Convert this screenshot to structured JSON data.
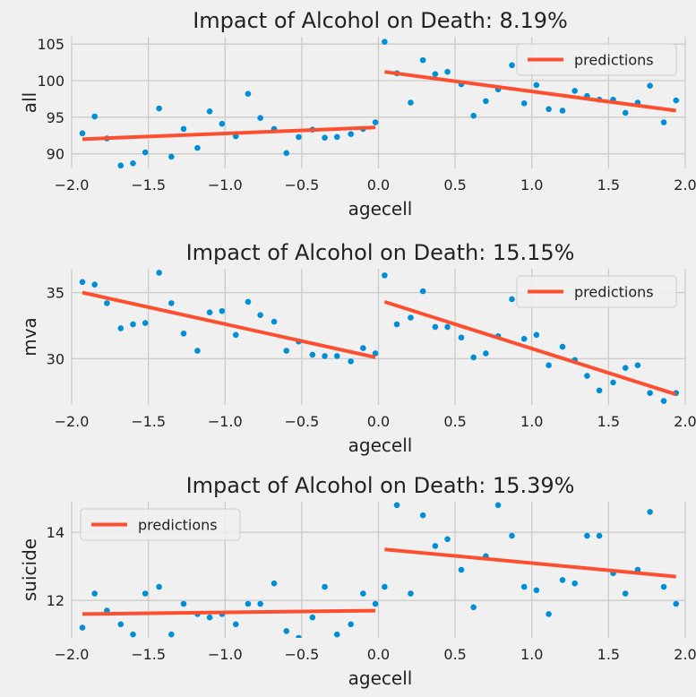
{
  "figure": {
    "background": "#f0f0f0",
    "point_color": "#008fd5",
    "line_color": "#fc4f30"
  },
  "chart_data": [
    {
      "type": "scatter",
      "title": "Impact of Alcohol on Death: 8.19%",
      "xlabel": "agecell",
      "ylabel": "all",
      "xlim": [
        -2.0,
        2.0
      ],
      "ylim": [
        88,
        106
      ],
      "xticks": [
        -2.0,
        -1.5,
        -1.0,
        -0.5,
        0.0,
        0.5,
        1.0,
        1.5,
        2.0
      ],
      "xtick_labels": [
        "−2.0",
        "−1.5",
        "−1.0",
        "−0.5",
        "0.0",
        "0.5",
        "1.0",
        "1.5",
        "2.0"
      ],
      "yticks": [
        90,
        95,
        100,
        105
      ],
      "ytick_labels": [
        "90",
        "95",
        "100",
        "105"
      ],
      "legend": {
        "label": "predictions",
        "placement": "top-right"
      },
      "series": [
        {
          "name": "observations",
          "x": [
            -1.93,
            -1.85,
            -1.77,
            -1.68,
            -1.6,
            -1.52,
            -1.43,
            -1.35,
            -1.27,
            -1.18,
            -1.1,
            -1.02,
            -0.93,
            -0.85,
            -0.77,
            -0.68,
            -0.6,
            -0.52,
            -0.43,
            -0.35,
            -0.27,
            -0.18,
            -0.1,
            -0.02,
            0.04,
            0.12,
            0.21,
            0.29,
            0.37,
            0.45,
            0.54,
            0.62,
            0.7,
            0.78,
            0.87,
            0.95,
            1.03,
            1.11,
            1.2,
            1.28,
            1.36,
            1.44,
            1.53,
            1.61,
            1.69,
            1.77,
            1.86,
            1.94
          ],
          "y": [
            92.8,
            95.1,
            92.1,
            88.4,
            88.7,
            90.2,
            96.2,
            89.6,
            93.4,
            90.8,
            95.8,
            94.1,
            92.4,
            98.2,
            94.9,
            93.4,
            90.1,
            92.3,
            93.3,
            92.2,
            92.3,
            92.7,
            93.4,
            94.3,
            105.3,
            101.0,
            97.0,
            102.8,
            100.9,
            101.2,
            99.5,
            95.2,
            97.2,
            98.8,
            102.1,
            96.9,
            99.4,
            96.1,
            95.9,
            98.6,
            97.9,
            97.4,
            97.4,
            95.6,
            97.0,
            99.3,
            94.3,
            97.3
          ]
        },
        {
          "name": "predictions",
          "segments": [
            {
              "x": [
                -1.93,
                -0.02
              ],
              "y": [
                92.0,
                93.6
              ]
            },
            {
              "x": [
                0.04,
                1.94
              ],
              "y": [
                101.2,
                95.9
              ]
            }
          ]
        }
      ]
    },
    {
      "type": "scatter",
      "title": "Impact of Alcohol on Death: 15.15%",
      "xlabel": "agecell",
      "ylabel": "mva",
      "xlim": [
        -2.0,
        2.0
      ],
      "ylim": [
        26.5,
        36.8
      ],
      "xticks": [
        -2.0,
        -1.5,
        -1.0,
        -0.5,
        0.0,
        0.5,
        1.0,
        1.5,
        2.0
      ],
      "xtick_labels": [
        "−2.0",
        "−1.5",
        "−1.0",
        "−0.5",
        "0.0",
        "0.5",
        "1.0",
        "1.5",
        "2.0"
      ],
      "yticks": [
        30,
        35
      ],
      "ytick_labels": [
        "30",
        "35"
      ],
      "legend": {
        "label": "predictions",
        "placement": "top-right"
      },
      "series": [
        {
          "name": "observations",
          "x": [
            -1.93,
            -1.85,
            -1.77,
            -1.68,
            -1.6,
            -1.52,
            -1.43,
            -1.35,
            -1.27,
            -1.18,
            -1.1,
            -1.02,
            -0.93,
            -0.85,
            -0.77,
            -0.68,
            -0.6,
            -0.52,
            -0.43,
            -0.35,
            -0.27,
            -0.18,
            -0.1,
            -0.02,
            0.04,
            0.12,
            0.21,
            0.29,
            0.37,
            0.45,
            0.54,
            0.62,
            0.7,
            0.78,
            0.87,
            0.95,
            1.03,
            1.11,
            1.2,
            1.28,
            1.36,
            1.44,
            1.53,
            1.61,
            1.69,
            1.77,
            1.86,
            1.94
          ],
          "y": [
            35.8,
            35.6,
            34.2,
            32.3,
            32.6,
            32.7,
            36.5,
            34.2,
            31.9,
            30.6,
            33.5,
            33.6,
            31.8,
            34.3,
            33.3,
            32.8,
            30.6,
            31.3,
            30.3,
            30.2,
            30.2,
            29.8,
            30.8,
            30.4,
            36.3,
            32.6,
            33.1,
            35.1,
            32.4,
            32.4,
            31.6,
            30.1,
            30.4,
            31.7,
            34.5,
            31.5,
            31.8,
            29.5,
            30.9,
            29.9,
            28.7,
            27.6,
            28.2,
            29.3,
            29.5,
            27.4,
            26.8,
            27.4
          ]
        },
        {
          "name": "predictions",
          "segments": [
            {
              "x": [
                -1.93,
                -0.02
              ],
              "y": [
                35.0,
                30.1
              ]
            },
            {
              "x": [
                0.04,
                1.94
              ],
              "y": [
                34.3,
                27.3
              ]
            }
          ]
        }
      ]
    },
    {
      "type": "scatter",
      "title": "Impact of Alcohol on Death: 15.39%",
      "xlabel": "agecell",
      "ylabel": "suicide",
      "xlim": [
        -2.0,
        2.0
      ],
      "ylim": [
        10.9,
        14.9
      ],
      "xticks": [
        -2.0,
        -1.5,
        -1.0,
        -0.5,
        0.0,
        0.5,
        1.0,
        1.5,
        2.0
      ],
      "xtick_labels": [
        "−2.0",
        "−1.5",
        "−1.0",
        "−0.5",
        "0.0",
        "0.5",
        "1.0",
        "1.5",
        "2.0"
      ],
      "yticks": [
        12,
        14
      ],
      "ytick_labels": [
        "12",
        "14"
      ],
      "legend": {
        "label": "predictions",
        "placement": "top-left"
      },
      "series": [
        {
          "name": "observations",
          "x": [
            -1.93,
            -1.85,
            -1.77,
            -1.68,
            -1.6,
            -1.52,
            -1.43,
            -1.35,
            -1.27,
            -1.18,
            -1.1,
            -1.02,
            -0.93,
            -0.85,
            -0.77,
            -0.68,
            -0.6,
            -0.52,
            -0.43,
            -0.35,
            -0.27,
            -0.18,
            -0.1,
            -0.02,
            0.04,
            0.12,
            0.21,
            0.29,
            0.37,
            0.45,
            0.54,
            0.62,
            0.7,
            0.78,
            0.87,
            0.95,
            1.03,
            1.11,
            1.2,
            1.28,
            1.36,
            1.44,
            1.53,
            1.61,
            1.69,
            1.77,
            1.86,
            1.94
          ],
          "y": [
            11.2,
            12.2,
            11.7,
            11.3,
            11.0,
            12.2,
            12.4,
            11.0,
            11.9,
            11.6,
            11.5,
            11.6,
            11.3,
            11.9,
            11.9,
            12.5,
            11.1,
            10.9,
            11.5,
            12.4,
            11.0,
            11.3,
            12.2,
            11.9,
            12.4,
            14.8,
            12.2,
            14.5,
            13.6,
            13.8,
            12.9,
            11.8,
            13.3,
            14.8,
            13.9,
            12.4,
            12.3,
            11.6,
            12.6,
            12.5,
            13.9,
            13.9,
            12.8,
            12.2,
            12.9,
            14.6,
            12.4,
            11.9
          ]
        },
        {
          "name": "predictions",
          "segments": [
            {
              "x": [
                -1.93,
                -0.02
              ],
              "y": [
                11.6,
                11.7
              ]
            },
            {
              "x": [
                0.04,
                1.94
              ],
              "y": [
                13.5,
                12.7
              ]
            }
          ]
        }
      ]
    }
  ]
}
